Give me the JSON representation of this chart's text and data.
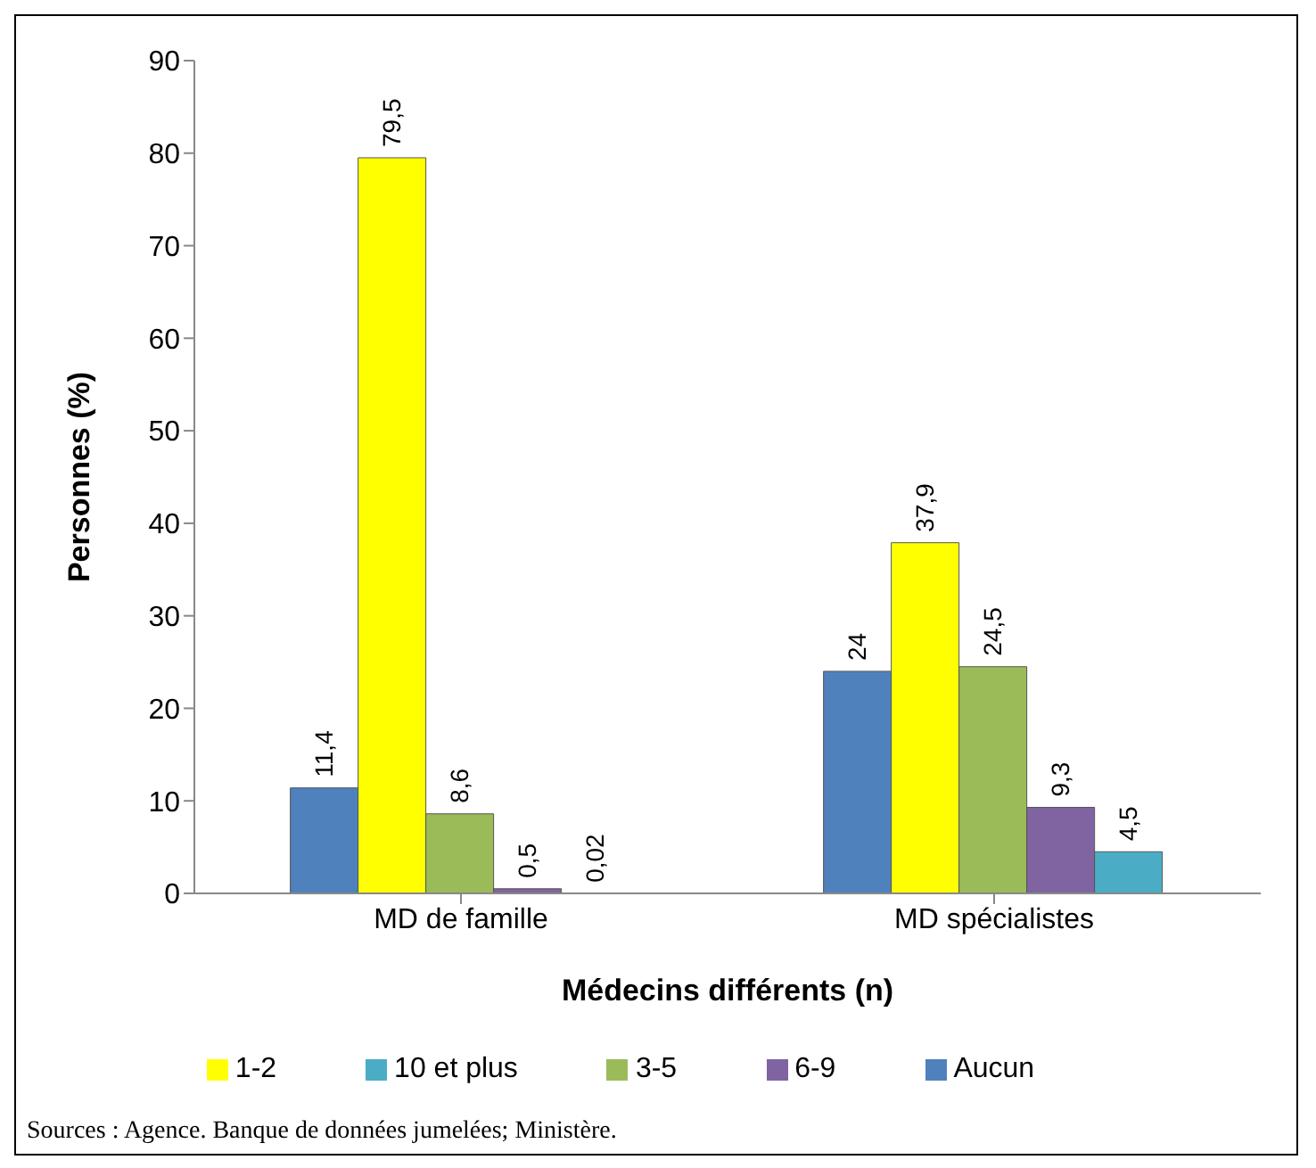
{
  "chart_data": {
    "type": "bar",
    "xlabel": "Médecins différents (n)",
    "ylabel": "Personnes (%)",
    "categories": [
      "MD de famille",
      "MD spécialistes"
    ],
    "series": [
      {
        "name": "Aucun",
        "color": "#4f81bd",
        "values": [
          11.4,
          24
        ],
        "value_labels": [
          "11,4",
          "24"
        ]
      },
      {
        "name": "1-2",
        "color": "#ffff00",
        "values": [
          79.5,
          37.9
        ],
        "value_labels": [
          "79,5",
          "37,9"
        ]
      },
      {
        "name": "3-5",
        "color": "#9bbb59",
        "values": [
          8.6,
          24.5
        ],
        "value_labels": [
          "8,6",
          "24,5"
        ]
      },
      {
        "name": "6-9",
        "color": "#8064a2",
        "values": [
          0.5,
          9.3
        ],
        "value_labels": [
          "0,5",
          "9,3"
        ]
      },
      {
        "name": "10 et plus",
        "color": "#4bacc6",
        "values": [
          0.02,
          4.5
        ],
        "value_labels": [
          "0,02",
          "4,5"
        ]
      }
    ],
    "ylim": [
      0,
      90
    ],
    "yticks": [
      0,
      10,
      20,
      30,
      40,
      50,
      60,
      70,
      80,
      90
    ],
    "grid": false,
    "legend": "bottom",
    "annotations": [
      "Sources : Agence. Banque de données jumelées; Ministère."
    ]
  }
}
